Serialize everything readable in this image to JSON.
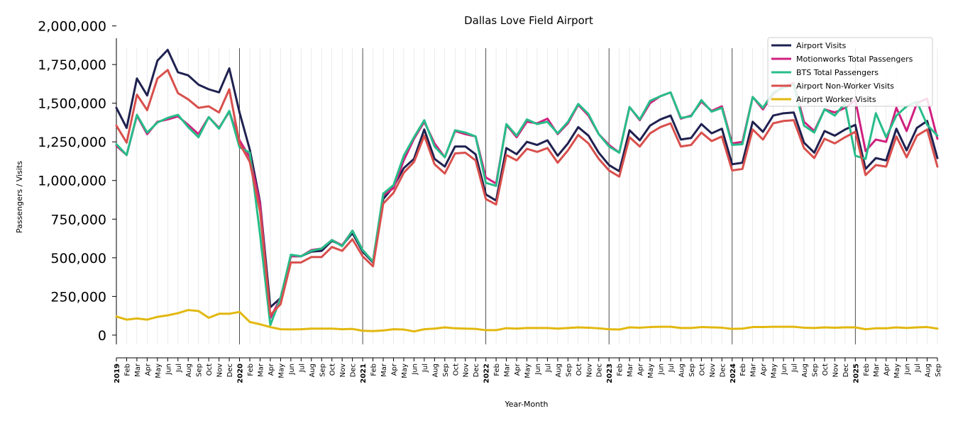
{
  "chart_data": {
    "type": "line",
    "title": "Dallas Love Field Airport",
    "xlabel": "Year-Month",
    "ylabel": "Passengers / Visits",
    "ylim": [
      -60000,
      1920000
    ],
    "yticks": [
      0,
      250000,
      500000,
      750000,
      1000000,
      1250000,
      1500000,
      1750000,
      2000000
    ],
    "ytick_labels": [
      "0",
      "250,000",
      "500,000",
      "750,000",
      "1,000,000",
      "1,250,000",
      "1,500,000",
      "1,750,000",
      "2,000,000"
    ],
    "legend_position": "top-right",
    "grid": "vertical monthly gridlines; darker lines at each January",
    "x": [
      "2019",
      "Feb",
      "Mar",
      "Apr",
      "May",
      "Jun",
      "Jul",
      "Aug",
      "Sep",
      "Oct",
      "Nov",
      "Dec",
      "2020",
      "Feb",
      "Mar",
      "Apr",
      "May",
      "Jun",
      "Jul",
      "Aug",
      "Sep",
      "Oct",
      "Nov",
      "Dec",
      "2021",
      "Feb",
      "Mar",
      "Apr",
      "May",
      "Jun",
      "Jul",
      "Aug",
      "Sep",
      "Oct",
      "Nov",
      "Dec",
      "2022",
      "Feb",
      "Mar",
      "Apr",
      "May",
      "Jun",
      "Jul",
      "Aug",
      "Sep",
      "Oct",
      "Nov",
      "Dec",
      "2023",
      "Feb",
      "Mar",
      "Apr",
      "May",
      "Jun",
      "Jul",
      "Aug",
      "Sep",
      "Oct",
      "Nov",
      "Dec",
      "2024",
      "Feb",
      "Mar",
      "Apr",
      "May",
      "Jun",
      "Jul",
      "Aug",
      "Sep",
      "Oct",
      "Nov",
      "Dec",
      "2025",
      "Feb",
      "Mar",
      "Apr",
      "May",
      "Jun",
      "Jul",
      "Aug",
      "Sep"
    ],
    "series": [
      {
        "name": "Airport Visits",
        "color": "#1f2150",
        "values": [
          1470000,
          1340000,
          1660000,
          1550000,
          1775000,
          1845000,
          1700000,
          1680000,
          1620000,
          1590000,
          1570000,
          1725000,
          1440000,
          1200000,
          860000,
          180000,
          240000,
          510000,
          510000,
          540000,
          545000,
          610000,
          580000,
          660000,
          540000,
          470000,
          880000,
          960000,
          1080000,
          1140000,
          1330000,
          1140000,
          1090000,
          1220000,
          1220000,
          1170000,
          910000,
          870000,
          1210000,
          1170000,
          1250000,
          1230000,
          1260000,
          1160000,
          1240000,
          1345000,
          1290000,
          1180000,
          1100000,
          1060000,
          1325000,
          1260000,
          1355000,
          1395000,
          1420000,
          1265000,
          1275000,
          1365000,
          1305000,
          1335000,
          1105000,
          1115000,
          1380000,
          1315000,
          1420000,
          1435000,
          1440000,
          1245000,
          1180000,
          1320000,
          1290000,
          1330000,
          1360000,
          1075000,
          1145000,
          1130000,
          1335000,
          1195000,
          1340000,
          1385000,
          1145000
        ]
      },
      {
        "name": "Motionworks Total Passengers",
        "color": "#d0207f",
        "values": [
          1225000,
          1165000,
          1420000,
          1300000,
          1380000,
          1395000,
          1415000,
          1360000,
          1300000,
          1410000,
          1340000,
          1445000,
          1260000,
          1150000,
          850000,
          110000,
          240000,
          510000,
          510000,
          550000,
          560000,
          615000,
          580000,
          675000,
          550000,
          475000,
          905000,
          950000,
          1130000,
          1270000,
          1380000,
          1240000,
          1150000,
          1320000,
          1300000,
          1285000,
          1020000,
          980000,
          1360000,
          1280000,
          1380000,
          1370000,
          1400000,
          1300000,
          1370000,
          1490000,
          1420000,
          1300000,
          1230000,
          1180000,
          1475000,
          1390000,
          1500000,
          1545000,
          1570000,
          1400000,
          1420000,
          1510000,
          1450000,
          1480000,
          1240000,
          1250000,
          1540000,
          1460000,
          1560000,
          1610000,
          1630000,
          1380000,
          1320000,
          1460000,
          1440000,
          1470000,
          1520000,
          1190000,
          1265000,
          1250000,
          1470000,
          1320000,
          1500000,
          1530000,
          1270000
        ]
      },
      {
        "name": "BTS Total Passengers",
        "color": "#27bd89",
        "values": [
          1235000,
          1165000,
          1425000,
          1310000,
          1375000,
          1405000,
          1425000,
          1345000,
          1280000,
          1410000,
          1335000,
          1450000,
          1215000,
          1180000,
          650000,
          65000,
          240000,
          520000,
          510000,
          545000,
          560000,
          615000,
          575000,
          675000,
          550000,
          475000,
          915000,
          970000,
          1160000,
          1280000,
          1390000,
          1220000,
          1150000,
          1325000,
          1310000,
          1285000,
          985000,
          965000,
          1365000,
          1290000,
          1395000,
          1365000,
          1380000,
          1305000,
          1380000,
          1495000,
          1430000,
          1300000,
          1220000,
          1180000,
          1475000,
          1395000,
          1515000,
          1545000,
          1570000,
          1405000,
          1415000,
          1520000,
          1445000,
          1470000,
          1230000,
          1235000,
          1540000,
          1470000,
          1570000,
          1600000,
          1620000,
          1355000,
          1310000,
          1460000,
          1420000,
          1500000,
          1160000,
          1140000,
          1435000,
          1280000,
          1420000,
          1480000,
          1510000,
          1360000,
          1290000
        ]
      },
      {
        "name": "Airport Non-Worker Visits",
        "color": "#d84f4c",
        "values": [
          1355000,
          1245000,
          1555000,
          1455000,
          1660000,
          1715000,
          1565000,
          1525000,
          1470000,
          1480000,
          1440000,
          1590000,
          1240000,
          1120000,
          800000,
          130000,
          200000,
          470000,
          470000,
          505000,
          505000,
          570000,
          545000,
          620000,
          510000,
          445000,
          850000,
          920000,
          1050000,
          1120000,
          1290000,
          1105000,
          1045000,
          1175000,
          1180000,
          1130000,
          880000,
          845000,
          1165000,
          1130000,
          1205000,
          1185000,
          1210000,
          1115000,
          1195000,
          1295000,
          1240000,
          1140000,
          1065000,
          1025000,
          1280000,
          1220000,
          1305000,
          1345000,
          1370000,
          1220000,
          1230000,
          1310000,
          1255000,
          1285000,
          1065000,
          1075000,
          1330000,
          1265000,
          1370000,
          1385000,
          1390000,
          1210000,
          1145000,
          1270000,
          1240000,
          1280000,
          1315000,
          1035000,
          1100000,
          1090000,
          1285000,
          1150000,
          1290000,
          1330000,
          1090000
        ]
      },
      {
        "name": "Airport Worker Visits",
        "color": "#e2b80f",
        "values": [
          120000,
          100000,
          108000,
          100000,
          118000,
          128000,
          142000,
          162000,
          156000,
          112000,
          138000,
          138000,
          150000,
          85000,
          70000,
          52000,
          38000,
          37000,
          38000,
          42000,
          42000,
          42000,
          38000,
          40000,
          28000,
          26000,
          30000,
          38000,
          36000,
          24000,
          38000,
          42000,
          50000,
          44000,
          42000,
          40000,
          32000,
          32000,
          45000,
          42000,
          46000,
          46000,
          46000,
          42000,
          46000,
          50000,
          48000,
          44000,
          38000,
          36000,
          50000,
          48000,
          52000,
          54000,
          54000,
          46000,
          46000,
          52000,
          50000,
          48000,
          40000,
          42000,
          52000,
          52000,
          54000,
          54000,
          54000,
          48000,
          46000,
          50000,
          48000,
          50000,
          50000,
          38000,
          44000,
          44000,
          50000,
          46000,
          50000,
          52000,
          42000
        ]
      }
    ]
  }
}
